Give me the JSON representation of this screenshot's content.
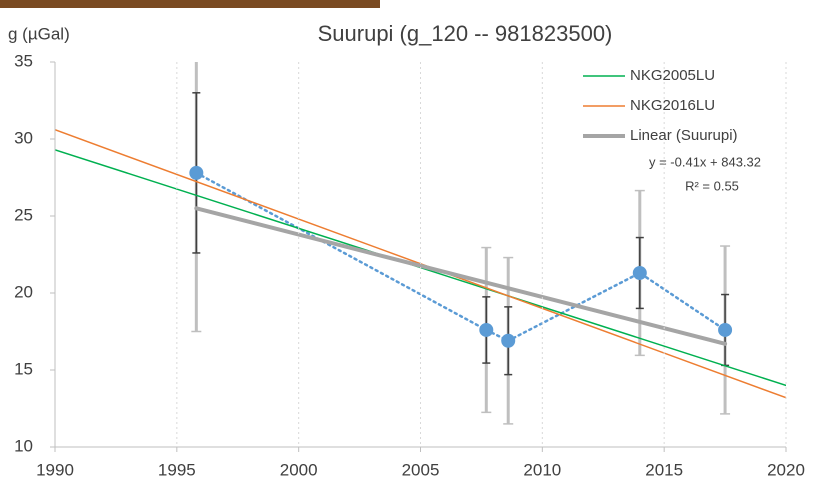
{
  "chart_data": {
    "type": "scatter",
    "title": "Suurupi (g_120 -- 981823500)",
    "y_label": "g (µGal)",
    "xlim": [
      1990,
      2020
    ],
    "xticks": [
      1990,
      1995,
      2000,
      2005,
      2010,
      2015,
      2020
    ],
    "ylim": [
      10,
      35
    ],
    "yticks": [
      10,
      15,
      20,
      25,
      30,
      35
    ],
    "grid": "x",
    "legend": "upper right",
    "series": [
      {
        "color": "#5b9bd5",
        "line_style": "dotted",
        "marker": true,
        "x": [
          1995.8,
          2007.7,
          2008.6,
          2014.0,
          2017.5
        ],
        "values": [
          27.8,
          17.6,
          16.9,
          21.3,
          17.6
        ],
        "error_inner": [
          5.2,
          2.15,
          2.2,
          2.3,
          2.3
        ],
        "error_outer": [
          10.3,
          5.35,
          5.4,
          5.35,
          5.45
        ],
        "error_colors": [
          "#404040",
          "#bfbfbf"
        ]
      },
      {
        "name": "NKG2005LU",
        "color": "#00b050",
        "line_style": "solid",
        "width": 1.5,
        "x": [
          1990,
          2020
        ],
        "values": [
          29.3,
          14.0
        ]
      },
      {
        "name": "NKG2016LU",
        "color": "#ed7d31",
        "line_style": "solid",
        "width": 1.5,
        "x": [
          1990,
          2020
        ],
        "values": [
          30.6,
          13.2
        ]
      },
      {
        "name": "Linear (Suurupi)",
        "color": "#a5a5a5",
        "line_style": "solid",
        "width": 4,
        "x": [
          1995.8,
          2017.5
        ],
        "values": [
          25.5,
          16.7
        ]
      }
    ],
    "equation": "y = -0.41x + 843.32",
    "r_squared": "R² = 0.55"
  }
}
